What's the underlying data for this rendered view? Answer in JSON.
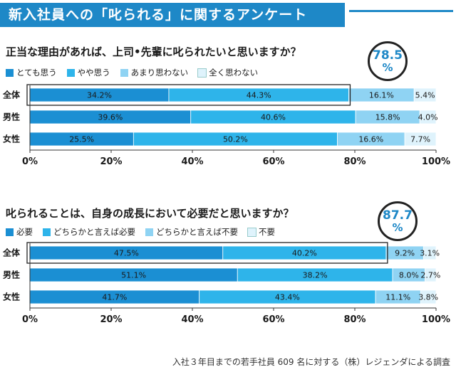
{
  "header": {
    "title": "新入社員への「叱られる」に関するアンケート"
  },
  "colors": {
    "c1": "#1b8fd3",
    "c2": "#2eb4ea",
    "c3": "#8fd3f3",
    "c4": "#dff3fc",
    "accent": "#1e88c7"
  },
  "footnote": "入社３年目までの若手社員 609 名に対する（株）レジェンダによる調査",
  "chart_data": [
    {
      "type": "bar",
      "stacked": true,
      "orientation": "horizontal",
      "title": "正当な理由があれば、上司•先輩に叱られたいと思いますか？",
      "categories": [
        "全体",
        "男性",
        "女性"
      ],
      "series": [
        {
          "name": "とても思う",
          "values": [
            34.2,
            39.6,
            25.5
          ]
        },
        {
          "name": "やや思う",
          "values": [
            44.3,
            40.6,
            50.2
          ]
        },
        {
          "name": "あまり思わない",
          "values": [
            16.1,
            15.8,
            16.6
          ]
        },
        {
          "name": "全く思わない",
          "values": [
            5.4,
            4.0,
            7.7
          ]
        }
      ],
      "value_labels": [
        [
          "34.2%",
          "44.3%",
          "16.1%",
          "5.4%"
        ],
        [
          "39.6%",
          "40.6%",
          "15.8%",
          "4.0%"
        ],
        [
          "25.5%",
          "50.2%",
          "16.6%",
          "7.7%"
        ]
      ],
      "xlim": [
        0,
        100
      ],
      "xticks": [
        "0%",
        "20%",
        "40%",
        "60%",
        "80%",
        "100%"
      ],
      "callout": {
        "value": "78.5",
        "unit": "%"
      }
    },
    {
      "type": "bar",
      "stacked": true,
      "orientation": "horizontal",
      "title": "叱られることは、自身の成長において必要だと思いますか？",
      "categories": [
        "全体",
        "男性",
        "女性"
      ],
      "series": [
        {
          "name": "必要",
          "values": [
            47.5,
            51.1,
            41.7
          ]
        },
        {
          "name": "どちらかと言えば必要",
          "values": [
            40.2,
            38.2,
            43.4
          ]
        },
        {
          "name": "どちらかと言えば不要",
          "values": [
            9.2,
            8.0,
            11.1
          ]
        },
        {
          "name": "不要",
          "values": [
            3.1,
            2.7,
            3.8
          ]
        }
      ],
      "value_labels": [
        [
          "47.5%",
          "40.2%",
          "9.2%",
          "3.1%"
        ],
        [
          "51.1%",
          "38.2%",
          "8.0%",
          "2.7%"
        ],
        [
          "41.7%",
          "43.4%",
          "11.1%",
          "3.8%"
        ]
      ],
      "xlim": [
        0,
        100
      ],
      "xticks": [
        "0%",
        "20%",
        "40%",
        "60%",
        "80%",
        "100%"
      ],
      "callout": {
        "value": "87.7",
        "unit": "%"
      }
    }
  ]
}
